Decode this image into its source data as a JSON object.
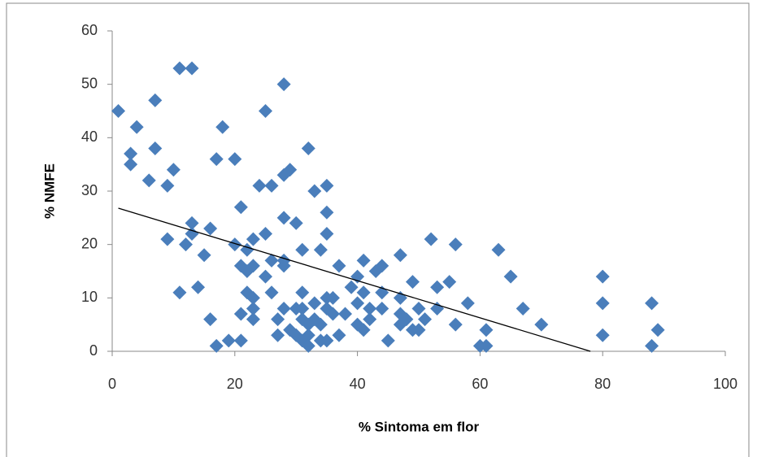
{
  "chart_data": {
    "type": "scatter",
    "x_label": "% Sintoma em flor",
    "y_label": "% NMFE",
    "color": "#4a7ebb",
    "x": [
      1,
      3,
      3,
      4,
      6,
      7,
      7,
      9,
      9,
      10,
      11,
      11,
      12,
      13,
      13,
      13,
      14,
      15,
      16,
      16,
      17,
      17,
      18,
      19,
      20,
      20,
      21,
      21,
      21,
      21,
      22,
      22,
      22,
      23,
      23,
      23,
      23,
      23,
      24,
      25,
      25,
      25,
      26,
      26,
      26,
      27,
      27,
      28,
      28,
      28,
      28,
      28,
      28,
      29,
      29,
      30,
      30,
      30,
      31,
      31,
      31,
      31,
      31,
      32,
      32,
      32,
      32,
      33,
      33,
      33,
      34,
      34,
      34,
      35,
      35,
      35,
      35,
      35,
      35,
      36,
      36,
      37,
      37,
      38,
      39,
      40,
      40,
      40,
      41,
      41,
      41,
      42,
      42,
      43,
      44,
      44,
      44,
      45,
      47,
      47,
      47,
      47,
      48,
      49,
      49,
      50,
      50,
      51,
      52,
      53,
      53,
      55,
      56,
      56,
      58,
      60,
      61,
      61,
      63,
      65,
      67,
      70,
      80,
      80,
      80,
      88,
      88,
      89
    ],
    "values": [
      45,
      37,
      35,
      42,
      32,
      47,
      38,
      31,
      21,
      34,
      53,
      11,
      20,
      53,
      24,
      22,
      12,
      18,
      23,
      6,
      1,
      36,
      42,
      2,
      36,
      20,
      27,
      16,
      7,
      2,
      19,
      15,
      11,
      21,
      16,
      10,
      8,
      6,
      31,
      45,
      22,
      14,
      31,
      17,
      11,
      6,
      3,
      50,
      33,
      25,
      17,
      16,
      8,
      34,
      4,
      24,
      8,
      3,
      19,
      11,
      8,
      6,
      2,
      38,
      5,
      3,
      1,
      30,
      9,
      6,
      19,
      5,
      2,
      31,
      26,
      22,
      10,
      8,
      2,
      10,
      7,
      16,
      3,
      7,
      12,
      14,
      9,
      5,
      17,
      11,
      4,
      8,
      6,
      15,
      16,
      11,
      8,
      2,
      18,
      10,
      7,
      5,
      6,
      13,
      4,
      8,
      4,
      6,
      21,
      12,
      8,
      13,
      20,
      5,
      9,
      1,
      4,
      1,
      19,
      14,
      8,
      5,
      14,
      9,
      3,
      9,
      1,
      4
    ],
    "trend": {
      "x": [
        1,
        78
      ],
      "y": [
        26.8,
        0
      ],
      "color": "#000000"
    },
    "xlim": [
      0,
      100
    ],
    "xticks": [
      0,
      20,
      40,
      60,
      80,
      100
    ],
    "ylim": [
      0,
      60
    ],
    "yticks": [
      0,
      10,
      20,
      30,
      40,
      50,
      60
    ],
    "grid": false
  }
}
